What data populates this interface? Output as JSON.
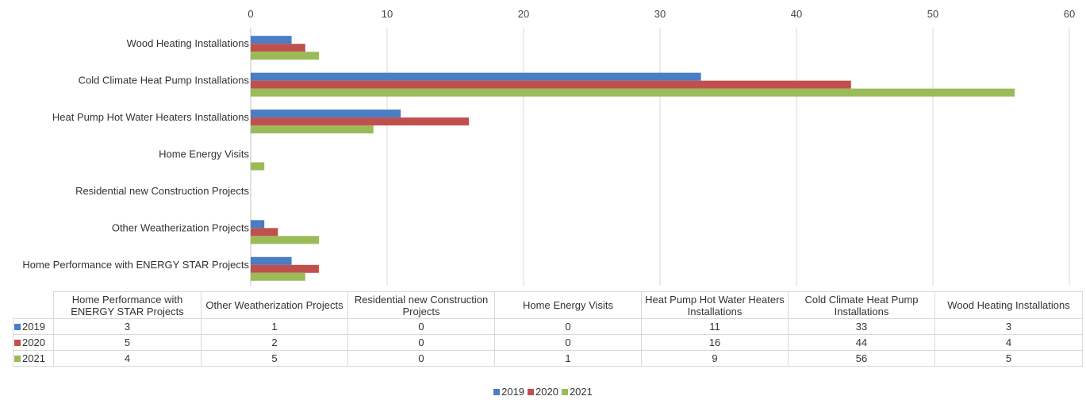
{
  "chart_data": {
    "type": "bar",
    "orientation": "horizontal",
    "categories": [
      "Home Performance with ENERGY STAR Projects",
      "Other Weatherization Projects",
      "Residential new Construction Projects",
      "Home Energy Visits",
      "Heat Pump Hot Water Heaters Installations",
      "Cold Climate Heat Pump Installations",
      "Wood Heating Installations"
    ],
    "series": [
      {
        "name": "2019",
        "color": "#4a7dc2",
        "values": [
          3,
          1,
          0,
          0,
          11,
          33,
          3
        ]
      },
      {
        "name": "2020",
        "color": "#c0504d",
        "values": [
          5,
          2,
          0,
          0,
          16,
          44,
          4
        ]
      },
      {
        "name": "2021",
        "color": "#9bbb59",
        "values": [
          4,
          5,
          0,
          1,
          9,
          56,
          5
        ]
      }
    ],
    "xlim": [
      0,
      60
    ],
    "xticks": [
      "0",
      "10",
      "20",
      "30",
      "40",
      "50",
      "60"
    ],
    "x_axis_position": "top",
    "grid": true,
    "data_table": true,
    "legend": "bottom"
  }
}
